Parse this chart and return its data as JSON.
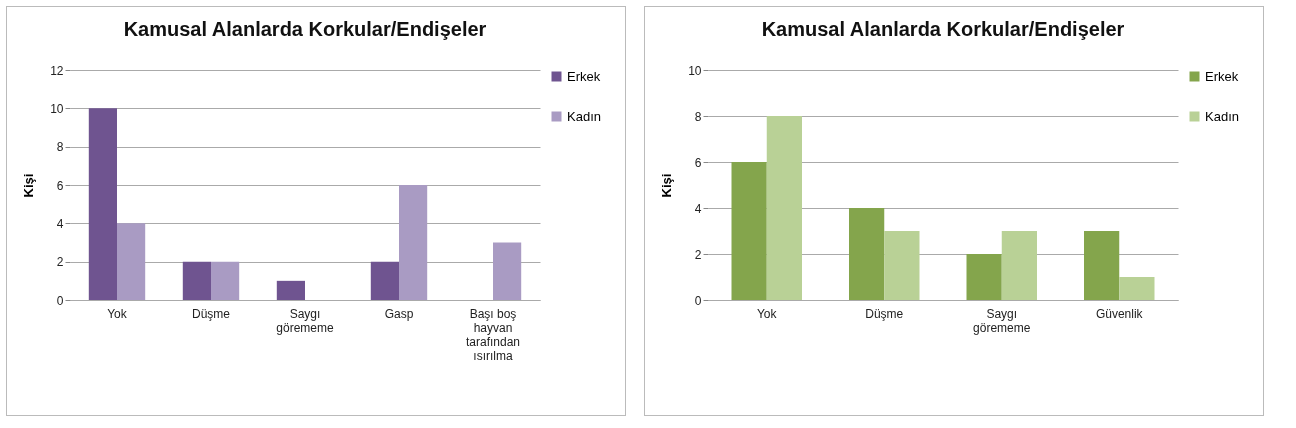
{
  "chart_data": [
    {
      "type": "bar",
      "title": "Kamusal Alanlarda Korkular/Endişeler",
      "ylabel": "Kişi",
      "categories": [
        "Yok",
        "Düşme",
        "Saygı görememe",
        "Gasp",
        "Başı boş hayvan tarafından ısırılma"
      ],
      "series": [
        {
          "name": "Erkek",
          "color": "#6f5490",
          "values": [
            10,
            2,
            1,
            2,
            0
          ]
        },
        {
          "name": "Kadın",
          "color": "#a99bc3",
          "values": [
            4,
            2,
            0,
            6,
            3
          ]
        }
      ],
      "ylim": [
        0,
        12
      ],
      "yticks": [
        0,
        2,
        4,
        6,
        8,
        10,
        12
      ],
      "grid": "y",
      "legend": "right"
    },
    {
      "type": "bar",
      "title": "Kamusal Alanlarda Korkular/Endişeler",
      "ylabel": "Kişi",
      "categories": [
        "Yok",
        "Düşme",
        "Saygı görememe",
        "Güvenlik"
      ],
      "series": [
        {
          "name": "Erkek",
          "color": "#84a54c",
          "values": [
            6,
            4,
            2,
            3
          ]
        },
        {
          "name": "Kadın",
          "color": "#b9d196",
          "values": [
            8,
            3,
            3,
            1
          ]
        }
      ],
      "ylim": [
        0,
        10
      ],
      "yticks": [
        0,
        2,
        4,
        6,
        8,
        10
      ],
      "grid": "y",
      "legend": "right"
    }
  ]
}
